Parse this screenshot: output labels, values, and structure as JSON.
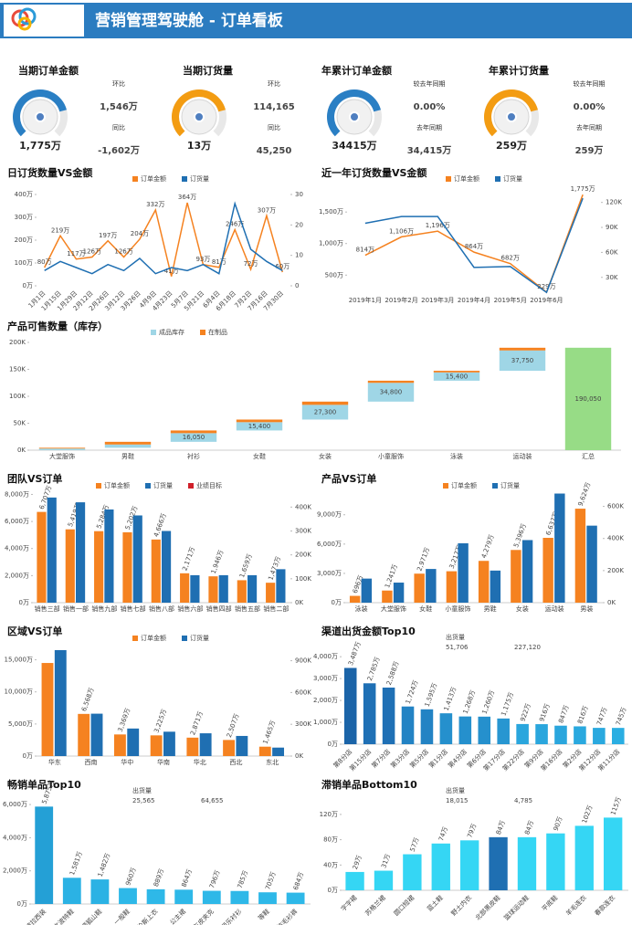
{
  "header": {
    "title": "营销管理驾驶舱 - 订单看板"
  },
  "kpis": [
    {
      "title": "当期订单金额",
      "value": "1,775万",
      "color": "#2a7fc4",
      "compare": [
        {
          "label": "环比",
          "value": "1,546万",
          "color": "#3ea33a"
        },
        {
          "label": "同比",
          "value": "-1,602万",
          "color": "#e0201c"
        }
      ]
    },
    {
      "title": "当期订货量",
      "value": "13万",
      "color": "#f39c12",
      "compare": [
        {
          "label": "环比",
          "value": "114,165",
          "color": "#3ea33a"
        },
        {
          "label": "同比",
          "value": "45,250",
          "color": "#3ea33a"
        }
      ]
    },
    {
      "title": "年累计订单金额",
      "value": "34415万",
      "color": "#2a7fc4",
      "compare": [
        {
          "label": "较去年同期",
          "value": "0.00%",
          "color": "#000000"
        },
        {
          "label": "去年同期",
          "value": "34,415万",
          "color": "#000000"
        }
      ]
    },
    {
      "title": "年累计订货量",
      "value": "259万",
      "color": "#f39c12",
      "compare": [
        {
          "label": "较去年同期",
          "value": "0.00%",
          "color": "#000000"
        },
        {
          "label": "去年同期",
          "value": "259万",
          "color": "#000000"
        }
      ]
    }
  ],
  "chart_data": [
    {
      "type": "line",
      "title": "日订货数量VS金额",
      "categories": [
        "1月1日",
        "1月15日",
        "1月29日",
        "2月12日",
        "2月26日",
        "3月12日",
        "3月26日",
        "4月9日",
        "4月23日",
        "5月7日",
        "5月21日",
        "6月4日",
        "6月18日",
        "7月2日",
        "7月16日",
        "7月30日"
      ],
      "series": [
        {
          "name": "订单金额",
          "color": "#f58220",
          "values": [
            80,
            219,
            117,
            126,
            197,
            126,
            204,
            332,
            41,
            364,
            93,
            81,
            246,
            72,
            307,
            60
          ],
          "value_labels": [
            "80万",
            "219万",
            "117万",
            "126万",
            "197万",
            "126万",
            "204万",
            "332万",
            "41万",
            "364万",
            "93万",
            "81万",
            "246万",
            "72万",
            "307万",
            "60万"
          ]
        },
        {
          "name": "订货量",
          "color": "#1f6fb2",
          "axis": "y2",
          "values": [
            5,
            8,
            6,
            4,
            7,
            5,
            9,
            4,
            6,
            5,
            7,
            4,
            27,
            12,
            8,
            5
          ]
        }
      ],
      "ylim": [
        0,
        420
      ],
      "yticks": [
        {
          "value": 0,
          "label": "0万"
        },
        {
          "value": 100,
          "label": "100万"
        },
        {
          "value": 200,
          "label": "200万"
        },
        {
          "value": 300,
          "label": "300万"
        },
        {
          "value": 400,
          "label": "400万"
        }
      ],
      "y2lim": [
        0,
        31.5
      ],
      "y2ticks": [
        0,
        10,
        20,
        30
      ]
    },
    {
      "type": "line",
      "title": "近一年订货数量VS金额",
      "categories": [
        "2019年1月",
        "2019年2月",
        "2019年3月",
        "2019年4月",
        "2019年5月",
        "2019年6月",
        null
      ],
      "series": [
        {
          "name": "订单金额",
          "color": "#f58220",
          "values": [
            814,
            1106,
            1196,
            864,
            682,
            229,
            1775
          ],
          "value_labels": [
            "814万",
            "1,106万",
            "1,196万",
            "864万",
            "682万",
            "229万",
            "1,775万"
          ]
        },
        {
          "name": "订货量",
          "color": "#1f6fb2",
          "axis": "y2",
          "values": [
            95000,
            103000,
            103000,
            42000,
            43000,
            12000,
            125000
          ]
        }
      ],
      "ylim": [
        200,
        1850
      ],
      "yticks": [
        {
          "value": 500,
          "label": "500万"
        },
        {
          "value": 1000,
          "label": "1,000万"
        },
        {
          "value": 1500,
          "label": "1,500万"
        }
      ],
      "y2lim": [
        10000,
        135000
      ],
      "y2ticks": [
        {
          "value": 30000,
          "label": "30K"
        },
        {
          "value": 60000,
          "label": "60K"
        },
        {
          "value": 90000,
          "label": "90K"
        },
        {
          "value": 120000,
          "label": "120K"
        }
      ]
    },
    {
      "type": "waterfall",
      "title": "产品可售数量（库存）",
      "categories": [
        "大堂服饰",
        "男鞋",
        "衬衫",
        "女鞋",
        "女装",
        "小童服饰",
        "泳装",
        "运动装",
        "汇总"
      ],
      "series": [
        {
          "name": "成品库存",
          "color": "#9fd6e6",
          "values": [
            3000,
            6000,
            16050,
            15400,
            27300,
            34800,
            15400,
            37750,
            null
          ],
          "value_labels": [
            null,
            null,
            "16,050",
            "15,400",
            "27,300",
            "34,800",
            "15,400",
            "37,750",
            null
          ]
        },
        {
          "name": "在制品",
          "color": "#f58220",
          "values": [
            1500,
            5000,
            5000,
            4850,
            6000,
            4000,
            3000,
            5000,
            null
          ]
        }
      ],
      "total": 190050,
      "total_label": "190,050",
      "total_color": "#97dc86",
      "ylim": [
        0,
        205000
      ],
      "yticks": [
        {
          "value": 0,
          "label": "0K"
        },
        {
          "value": 50000,
          "label": "50K"
        },
        {
          "value": 100000,
          "label": "100K"
        },
        {
          "value": 150000,
          "label": "150K"
        },
        {
          "value": 200000,
          "label": "200K"
        }
      ]
    },
    {
      "type": "bar",
      "title": "团队VS订单",
      "categories": [
        "销售三部",
        "销售一部",
        "销售九部",
        "销售七部",
        "销售八部",
        "销售六部",
        "销售四部",
        "销售五部",
        "销售二部"
      ],
      "series": [
        {
          "name": "订单金额",
          "color": "#f58220",
          "values": [
            6707,
            5419,
            5284,
            5202,
            4666,
            2171,
            1946,
            1659,
            1473
          ],
          "value_labels": [
            "6,707万",
            "5,419万",
            "5,284万",
            "5,202万",
            "4,666万",
            "2,171万",
            "1,946万",
            "1,659万",
            "1,473万"
          ]
        },
        {
          "name": "订货量",
          "color": "#1f6fb2",
          "axis": "y2",
          "values": [
            440000,
            420000,
            390000,
            365000,
            300000,
            115000,
            115000,
            115000,
            140000
          ]
        },
        {
          "name": "业绩目标",
          "color": "#d0202a",
          "values": [
            null,
            null,
            null,
            null,
            null,
            null,
            null,
            null,
            null
          ]
        }
      ],
      "ylim": [
        0,
        8300
      ],
      "yticks": [
        {
          "value": 0,
          "label": "0万"
        },
        {
          "value": 2000,
          "label": "2,000万"
        },
        {
          "value": 4000,
          "label": "4,000万"
        },
        {
          "value": 6000,
          "label": "6,000万"
        },
        {
          "value": 8000,
          "label": "8,000万"
        }
      ],
      "y2lim": [
        0,
        470000
      ],
      "y2ticks": [
        {
          "value": 0,
          "label": "0K"
        },
        {
          "value": 100000,
          "label": "100K"
        },
        {
          "value": 200000,
          "label": "200K"
        },
        {
          "value": 300000,
          "label": "300K"
        },
        {
          "value": 400000,
          "label": "400K"
        }
      ]
    },
    {
      "type": "bar",
      "title": "产品VS订单",
      "categories": [
        "泳装",
        "大堂服饰",
        "女鞋",
        "小童服饰",
        "男鞋",
        "女装",
        "运动装",
        "男装"
      ],
      "series": [
        {
          "name": "订单金额",
          "color": "#f58220",
          "values": [
            696,
            1241,
            2971,
            3217,
            4279,
            5396,
            6637,
            9624
          ],
          "value_labels": [
            "696万",
            "1,241万",
            "2,971万",
            "3,217万",
            "4,279万",
            "5,396万",
            "6,637万",
            "9,624万"
          ]
        },
        {
          "name": "订货量",
          "color": "#1f6fb2",
          "axis": "y2",
          "values": [
            150000,
            125000,
            210000,
            370000,
            200000,
            390000,
            680000,
            480000
          ]
        }
      ],
      "ylim": [
        0,
        11500
      ],
      "yticks": [
        {
          "value": 0,
          "label": "0万"
        },
        {
          "value": 3000,
          "label": "3,000万"
        },
        {
          "value": 6000,
          "label": "6,000万"
        },
        {
          "value": 9000,
          "label": "9,000万"
        }
      ],
      "y2lim": [
        0,
        700000
      ],
      "y2ticks": [
        {
          "value": 0,
          "label": "0K"
        },
        {
          "value": 200000,
          "label": "200K"
        },
        {
          "value": 400000,
          "label": "400K"
        },
        {
          "value": 600000,
          "label": "600K"
        }
      ]
    },
    {
      "type": "bar",
      "title": "区域VS订单",
      "categories": [
        "华东",
        "西南",
        "华中",
        "华南",
        "华北",
        "西北",
        "东北"
      ],
      "series": [
        {
          "name": "订单金额",
          "color": "#f58220",
          "values": [
            14505,
            6568,
            3369,
            3225,
            2871,
            2507,
            1465
          ],
          "value_labels": [
            null,
            "6,568万",
            "3,369万",
            "3,225万",
            "2,871万",
            "2,507万",
            "1,465万"
          ]
        },
        {
          "name": "订货量",
          "color": "#1f6fb2",
          "axis": "y2",
          "values": [
            1000000,
            400000,
            260000,
            230000,
            215000,
            190000,
            80000
          ]
        }
      ],
      "ylim": [
        0,
        17500
      ],
      "yticks": [
        {
          "value": 0,
          "label": "0万"
        },
        {
          "value": 5000,
          "label": "5,000万"
        },
        {
          "value": 10000,
          "label": "10,000万"
        },
        {
          "value": 15000,
          "label": "15,000万"
        }
      ],
      "y2lim": [
        0,
        1060000
      ],
      "y2ticks": [
        {
          "value": 0,
          "label": "0K"
        },
        {
          "value": 300000,
          "label": "300K"
        },
        {
          "value": 600000,
          "label": "600K"
        },
        {
          "value": 900000,
          "label": "900K"
        }
      ]
    },
    {
      "type": "bar",
      "title": "渠道出货金额Top10",
      "categories": [
        "第8分店",
        "第15分店",
        "第7分店",
        "第3分店",
        "第5分店",
        "第1分店",
        "第4分店",
        "第6分店",
        "第17分店",
        "第22分店",
        "第9分店",
        "第16分店",
        "第2分店",
        "第12分店",
        "第11分店"
      ],
      "values": [
        3487,
        2785,
        2588,
        1724,
        1595,
        1413,
        1268,
        1260,
        1175,
        922,
        916,
        847,
        816,
        747,
        745
      ],
      "value_labels": [
        "3,487万",
        "2,785万",
        "2,588万",
        "1,724万",
        "1,595万",
        "1,413万",
        "1,268万",
        "1,260万",
        "1,175万",
        "922万",
        "916万",
        "847万",
        "816万",
        "747万",
        "745万"
      ],
      "colors": [
        "#1b64a8",
        "#1f70b5",
        "#1f70b5",
        "#2383c4",
        "#2383c4",
        "#2590cd",
        "#2590cd",
        "#2590cd",
        "#2796d1",
        "#2aa6dd",
        "#2aa6dd",
        "#2aa6dd",
        "#2aa9df",
        "#2aa9df",
        "#2aaee2"
      ],
      "label_color": "#f58220",
      "color_scale": {
        "title": "出货量",
        "min": {
          "value": 51706,
          "label": "51,706"
        },
        "max": {
          "value": 227120,
          "label": "227,120"
        }
      },
      "ylim": [
        0,
        4300
      ],
      "yticks": [
        {
          "value": 0,
          "label": "0万"
        },
        {
          "value": 1000,
          "label": "1,000万"
        },
        {
          "value": 2000,
          "label": "2,000万"
        },
        {
          "value": 3000,
          "label": "3,000万"
        },
        {
          "value": 4000,
          "label": "4,000万"
        }
      ]
    },
    {
      "type": "bar",
      "title": "畅销单品Top10",
      "categories": [
        "波拉西装",
        "达文波特鞋",
        "山顶狐山鞋",
        "一般鞋",
        "特伦斯上衣",
        "公主裙",
        "机车皮夹克",
        "布丽乐衬衫",
        "等鞋",
        "仿毛衫裤"
      ],
      "values": [
        5875,
        1581,
        1482,
        960,
        889,
        864,
        796,
        785,
        705,
        684
      ],
      "value_labels": [
        "5,875万",
        "1,581万",
        "1,482万",
        "960万",
        "889万",
        "864万",
        "796万",
        "785万",
        "705万",
        "684万"
      ],
      "colors": [
        "#24a0d6",
        "#2bb2e4",
        "#2bb2e4",
        "#2eb8e8",
        "#2eb8e8",
        "#2eb8e8",
        "#2eb8e8",
        "#2eb8e8",
        "#2eb8e8",
        "#2eb8e8"
      ],
      "label_color": "#f58220",
      "color_scale": {
        "title": "出货量",
        "min": {
          "value": 25565,
          "label": "25,565"
        },
        "max": {
          "value": 64655,
          "label": "64,655"
        }
      },
      "ylim": [
        0,
        6500
      ],
      "yticks": [
        {
          "value": 0,
          "label": "0万"
        },
        {
          "value": 2000,
          "label": "2,000万"
        },
        {
          "value": 4000,
          "label": "4,000万"
        },
        {
          "value": 6000,
          "label": "6,000万"
        }
      ]
    },
    {
      "type": "bar",
      "title": "滞销单品Bottom10",
      "categories": [
        "字字裙",
        "苏格兰裙",
        "圆口短裙",
        "蓝土鞋",
        "野土内衣",
        "北部黑皮鞋",
        "篮球运动鞋",
        "平底鞋",
        "羊毛连衣",
        "春款连衣"
      ],
      "values": [
        29,
        31,
        57,
        74,
        79,
        84,
        84,
        90,
        102,
        115
      ],
      "value_labels": [
        "29万",
        "31万",
        "57万",
        "74万",
        "79万",
        "84万",
        "84万",
        "90万",
        "102万",
        "115万"
      ],
      "colors": [
        "#35d6f4",
        "#35d6f4",
        "#35d6f4",
        "#35d6f4",
        "#35d6f4",
        "#1f6fb2",
        "#35d6f4",
        "#35d6f4",
        "#35d6f4",
        "#35d6f4"
      ],
      "label_color": "#f58220",
      "color_scale": {
        "title": "出货量",
        "min": {
          "value": 18015,
          "label": "18,015"
        },
        "max": {
          "value": 4785,
          "label": "4,785"
        }
      },
      "ylim": [
        0,
        130
      ],
      "yticks": [
        {
          "value": 0,
          "label": "0万"
        },
        {
          "value": 40,
          "label": "40万"
        },
        {
          "value": 80,
          "label": "80万"
        },
        {
          "value": 120,
          "label": "120万"
        }
      ]
    }
  ]
}
